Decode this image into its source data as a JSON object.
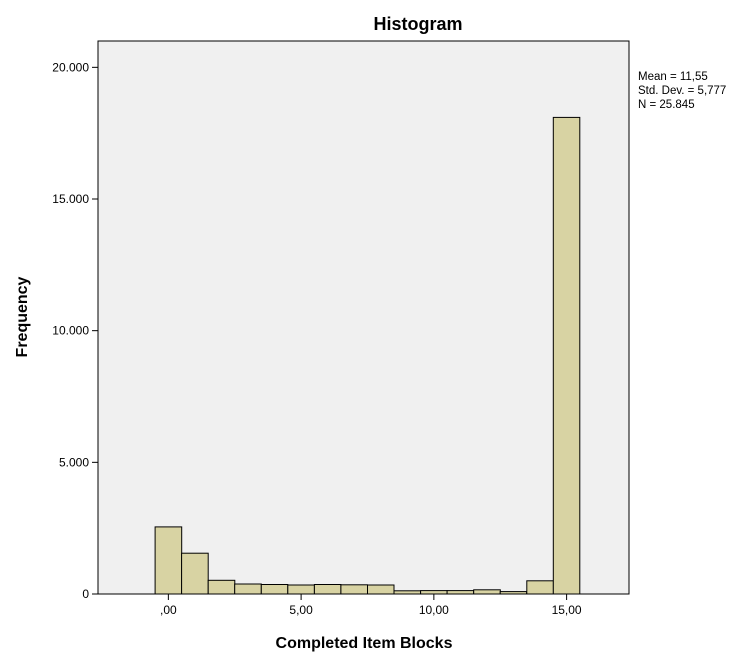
{
  "colors": {
    "plot_background": "#f0f0f0",
    "bar_fill": "#d8d3a3",
    "bar_stroke": "#000000",
    "page_background": "#ffffff"
  },
  "chart_data": {
    "type": "bar",
    "title": "Histogram",
    "xlabel": "Completed Item Blocks",
    "ylabel": "Frequency",
    "xlim": [
      -2.65,
      17.35
    ],
    "ylim": [
      0,
      21000
    ],
    "xticks": [
      {
        "value": 0,
        "label": ",00"
      },
      {
        "value": 5,
        "label": "5,00"
      },
      {
        "value": 10,
        "label": "10,00"
      },
      {
        "value": 15,
        "label": "15,00"
      }
    ],
    "yticks": [
      {
        "value": 0,
        "label": "0"
      },
      {
        "value": 5000,
        "label": "5.000"
      },
      {
        "value": 10000,
        "label": "10.000"
      },
      {
        "value": 15000,
        "label": "15.000"
      },
      {
        "value": 20000,
        "label": "20.000"
      }
    ],
    "bin_width": 1,
    "bin_centers": [
      0,
      1,
      2,
      3,
      4,
      5,
      6,
      7,
      8,
      9,
      10,
      11,
      12,
      13,
      14,
      15
    ],
    "values": [
      2550,
      1550,
      520,
      380,
      360,
      340,
      360,
      350,
      340,
      120,
      130,
      130,
      160,
      90,
      500,
      18100
    ],
    "grid": false,
    "legend": "none",
    "stats": {
      "mean": "Mean = 11,55",
      "std_dev": "Std. Dev. = 5,777",
      "n": "N = 25.845"
    }
  }
}
